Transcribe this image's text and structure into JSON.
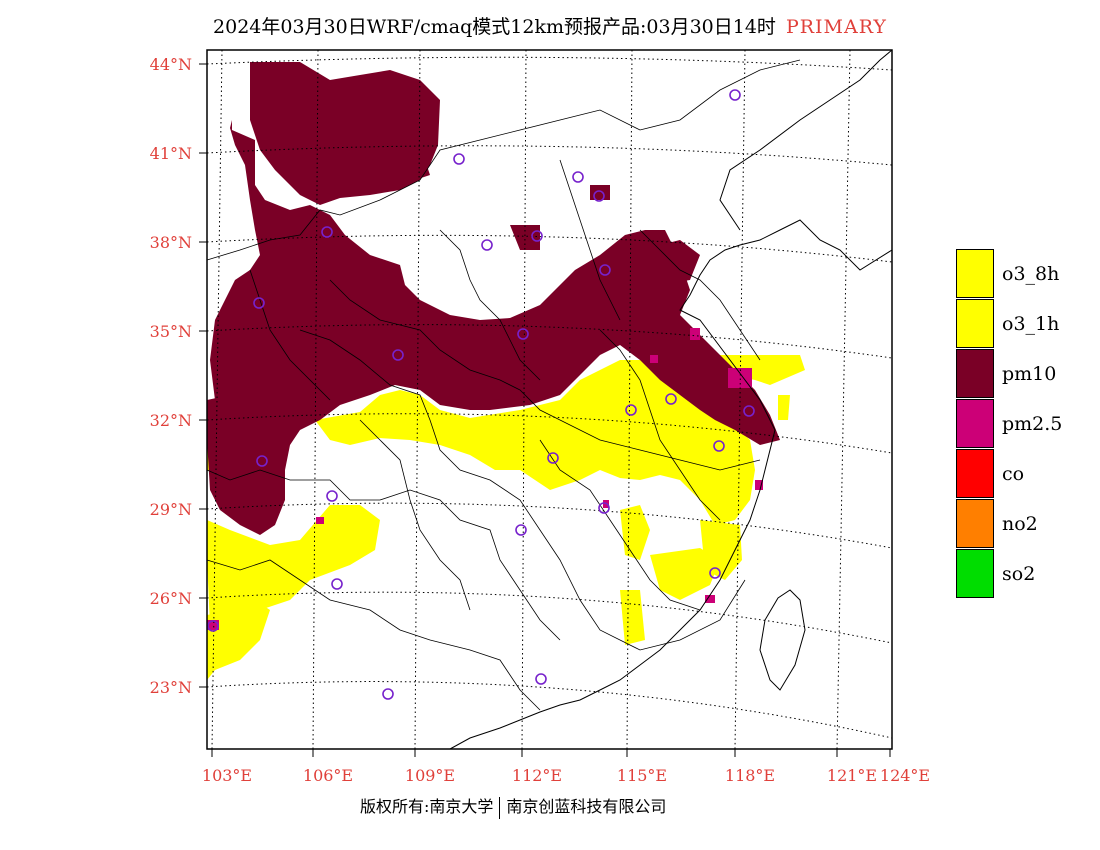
{
  "title": {
    "main": "2024年03月30日WRF/cmaq模式12km预报产品:03月30日14时",
    "tag": "PRIMARY"
  },
  "lat_labels": [
    "44°N",
    "41°N",
    "38°N",
    "35°N",
    "32°N",
    "29°N",
    "26°N",
    "23°N"
  ],
  "lon_labels": [
    "103°E",
    "106°E",
    "109°E",
    "112°E",
    "115°E",
    "118°E",
    "121°E",
    "124°E"
  ],
  "legend": [
    {
      "label": "o3_8h",
      "color": "#ffff00"
    },
    {
      "label": "o3_1h",
      "color": "#ffff00"
    },
    {
      "label": "pm10",
      "color": "#7a0026"
    },
    {
      "label": "pm2.5",
      "color": "#cc0077"
    },
    {
      "label": "co",
      "color": "#ff0000"
    },
    {
      "label": "no2",
      "color": "#ff7f00"
    },
    {
      "label": "so2",
      "color": "#00dd00"
    }
  ],
  "footer": {
    "left": "版权所有:南京大学",
    "right": "南京创蓝科技有限公司"
  }
}
